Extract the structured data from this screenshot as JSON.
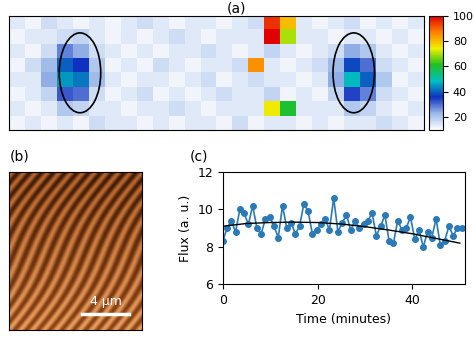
{
  "chart_data": [
    {
      "type": "heatmap",
      "panel_label": "(a)",
      "tick_labels": false,
      "cells": [
        [
          14,
          12,
          16,
          14,
          12,
          14,
          12,
          14,
          16,
          14,
          12,
          14,
          14,
          12,
          14,
          16,
          95,
          80,
          14,
          12,
          14,
          16,
          12,
          14,
          12,
          14
        ],
        [
          12,
          14,
          14,
          16,
          18,
          14,
          12,
          14,
          12,
          14,
          16,
          14,
          12,
          14,
          14,
          14,
          100,
          70,
          14,
          14,
          12,
          14,
          14,
          12,
          14,
          12
        ],
        [
          14,
          12,
          16,
          28,
          24,
          16,
          14,
          12,
          14,
          12,
          14,
          14,
          16,
          14,
          12,
          14,
          18,
          14,
          12,
          14,
          16,
          24,
          20,
          14,
          12,
          14
        ],
        [
          12,
          16,
          22,
          40,
          36,
          20,
          12,
          14,
          12,
          16,
          14,
          12,
          14,
          14,
          16,
          85,
          14,
          12,
          14,
          16,
          22,
          38,
          30,
          16,
          14,
          12
        ],
        [
          14,
          14,
          24,
          45,
          42,
          22,
          14,
          12,
          14,
          14,
          12,
          14,
          16,
          12,
          14,
          16,
          14,
          14,
          12,
          14,
          24,
          48,
          40,
          20,
          12,
          14
        ],
        [
          12,
          14,
          18,
          32,
          30,
          16,
          12,
          14,
          16,
          12,
          14,
          12,
          14,
          16,
          14,
          14,
          18,
          12,
          14,
          12,
          18,
          34,
          28,
          16,
          14,
          12
        ],
        [
          14,
          12,
          14,
          20,
          18,
          14,
          14,
          12,
          14,
          14,
          16,
          14,
          12,
          14,
          14,
          14,
          75,
          60,
          14,
          14,
          14,
          20,
          18,
          14,
          12,
          14
        ],
        [
          12,
          14,
          12,
          14,
          12,
          16,
          14,
          14,
          12,
          14,
          12,
          14,
          14,
          12,
          16,
          12,
          14,
          14,
          12,
          14,
          12,
          14,
          14,
          16,
          14,
          12
        ]
      ],
      "color_range": [
        10,
        100
      ],
      "color_ticks": [
        20,
        40,
        60,
        80,
        100
      ]
    },
    {
      "type": "image",
      "panel_label": "(b)",
      "scale_bar": "4 μm"
    },
    {
      "type": "line",
      "panel_label": "(c)",
      "xlabel": "Time (minutes)",
      "ylabel": "Flux (a. u.)",
      "xlim": [
        0,
        51
      ],
      "xticks": [
        0,
        20,
        40
      ],
      "ylim": [
        6,
        12
      ],
      "yticks": [
        6,
        8,
        10,
        12
      ],
      "series": [
        {
          "color": "#2a7ab8",
          "marker": "o",
          "line_style": "solid",
          "x": [
            0,
            0.9,
            1.8,
            2.7,
            3.6,
            4.5,
            5.4,
            6.3,
            7.2,
            8.1,
            9,
            9.9,
            10.8,
            11.7,
            12.6,
            13.5,
            14.4,
            15.3,
            16.2,
            17.1,
            18,
            18.9,
            19.8,
            20.7,
            21.6,
            22.5,
            23.4,
            24.3,
            25.2,
            26.1,
            27,
            27.9,
            28.8,
            29.7,
            30.6,
            31.5,
            32.4,
            33.3,
            34.2,
            35.1,
            36,
            36.9,
            37.8,
            38.7,
            39.6,
            40.5,
            41.4,
            42.3,
            43.2,
            44.1,
            45,
            45.9,
            46.8,
            47.7,
            48.6,
            49.5,
            50.4
          ],
          "values": [
            8.3,
            9.0,
            9.4,
            8.8,
            10.0,
            9.8,
            9.2,
            10.2,
            9.0,
            8.7,
            9.5,
            9.6,
            9.1,
            8.5,
            10.2,
            9.0,
            9.3,
            8.7,
            9.1,
            10.3,
            9.9,
            8.7,
            8.9,
            9.2,
            9.5,
            8.9,
            10.6,
            8.8,
            9.3,
            9.7,
            8.9,
            9.4,
            9.0,
            9.2,
            9.4,
            9.8,
            8.6,
            9.1,
            9.7,
            8.3,
            8.2,
            9.4,
            8.9,
            9.0,
            9.6,
            8.4,
            8.9,
            8.0,
            8.8,
            8.5,
            9.5,
            8.1,
            8.3,
            9.1,
            8.6,
            9.0,
            9.0
          ]
        },
        {
          "color": "#000000",
          "marker": "none",
          "line_style": "solid",
          "x": [
            0,
            5,
            10,
            15,
            20,
            25,
            30,
            35,
            40,
            45,
            50
          ],
          "values": [
            9.1,
            9.25,
            9.3,
            9.32,
            9.3,
            9.22,
            9.08,
            8.9,
            8.7,
            8.45,
            8.2
          ]
        }
      ]
    }
  ]
}
